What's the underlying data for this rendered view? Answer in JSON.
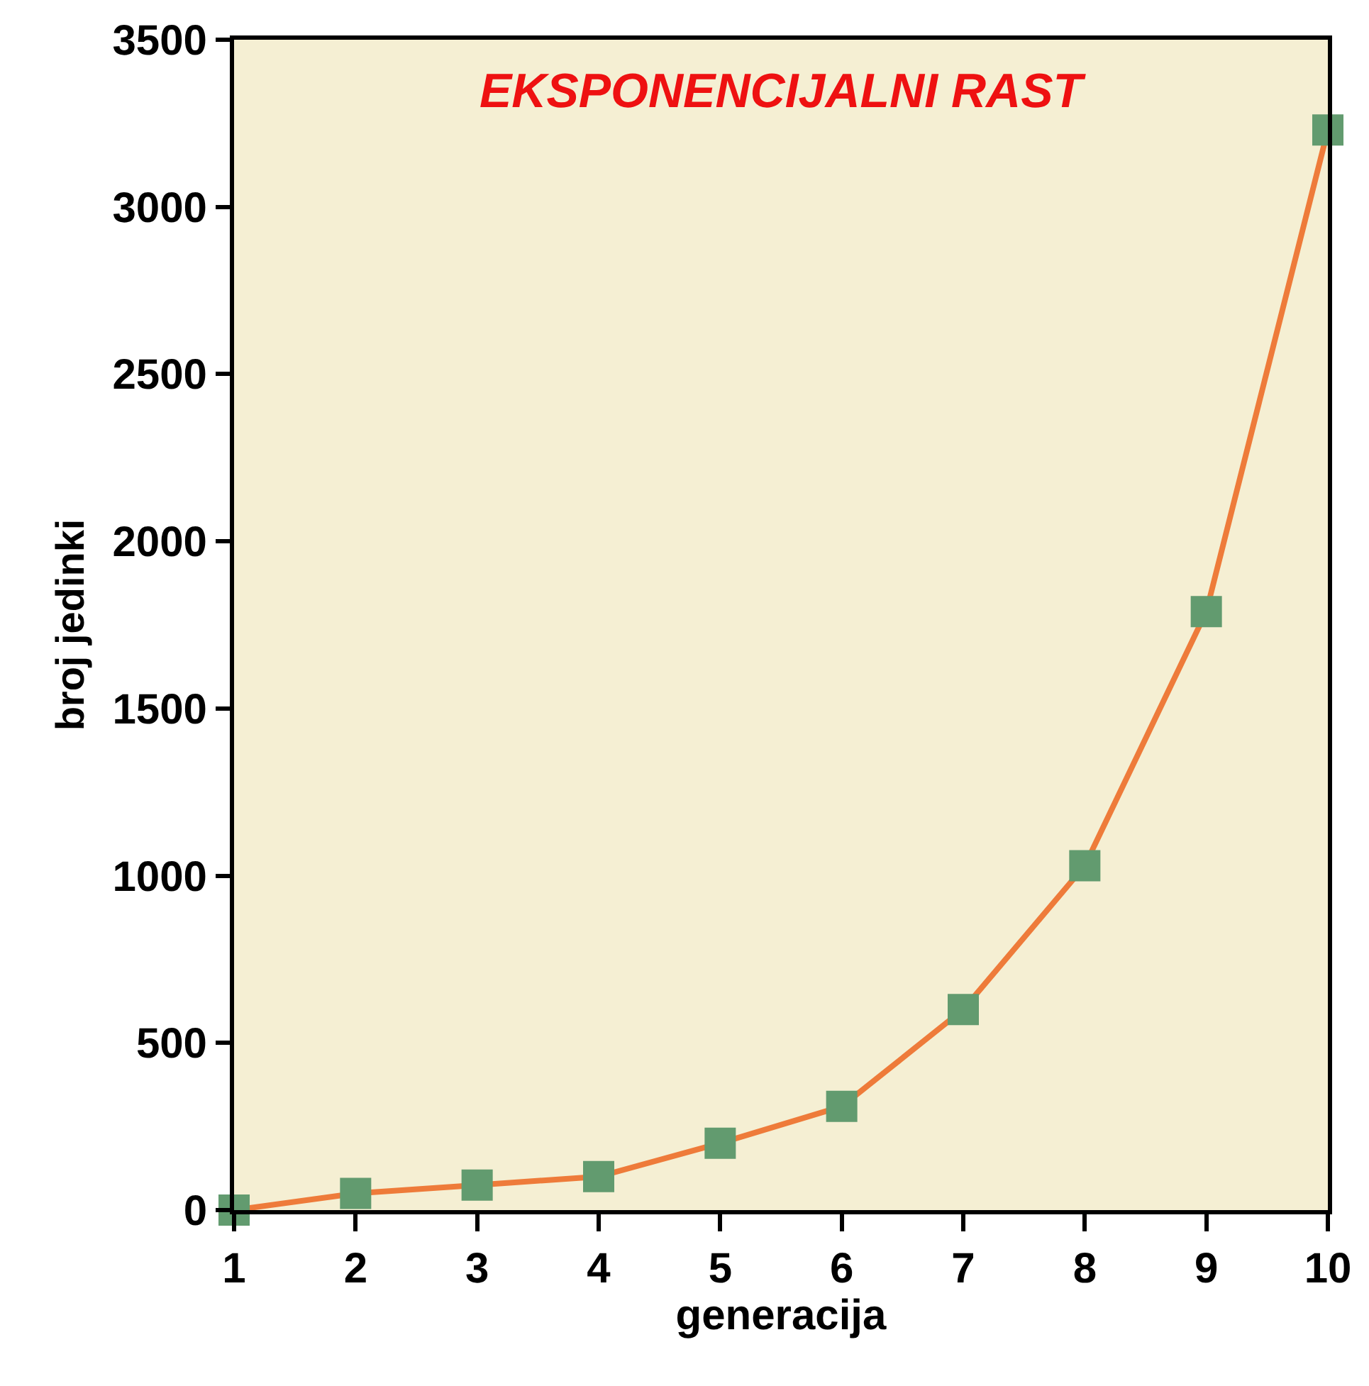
{
  "chart_data": {
    "type": "line",
    "title": "EKSPONENCIJALNI RAST",
    "xlabel": "generacija",
    "ylabel": "broj jedinki",
    "x": [
      1,
      2,
      3,
      4,
      5,
      6,
      7,
      8,
      9,
      10
    ],
    "series": [
      {
        "color": "#ee7b3a",
        "colors": [
          "#629b6f",
          "#629b6f",
          "#629b6f",
          "#629b6f",
          "#629b6f",
          "#629b6f",
          "#629b6f",
          "#629b6f",
          "#629b6f",
          "#629b6f"
        ],
        "values": [
          0,
          50,
          75,
          100,
          200,
          310,
          600,
          1030,
          1790,
          3230
        ]
      }
    ],
    "xlim": [
      1,
      10
    ],
    "xticks": [
      1,
      2,
      3,
      4,
      5,
      6,
      7,
      8,
      9,
      10
    ],
    "ylim": [
      0,
      3500
    ],
    "yticks": [
      0,
      500,
      1000,
      1500,
      2000,
      2500,
      3000,
      3500
    ],
    "marker": "square",
    "line_style": "solid",
    "grid": false,
    "legend": false
  }
}
